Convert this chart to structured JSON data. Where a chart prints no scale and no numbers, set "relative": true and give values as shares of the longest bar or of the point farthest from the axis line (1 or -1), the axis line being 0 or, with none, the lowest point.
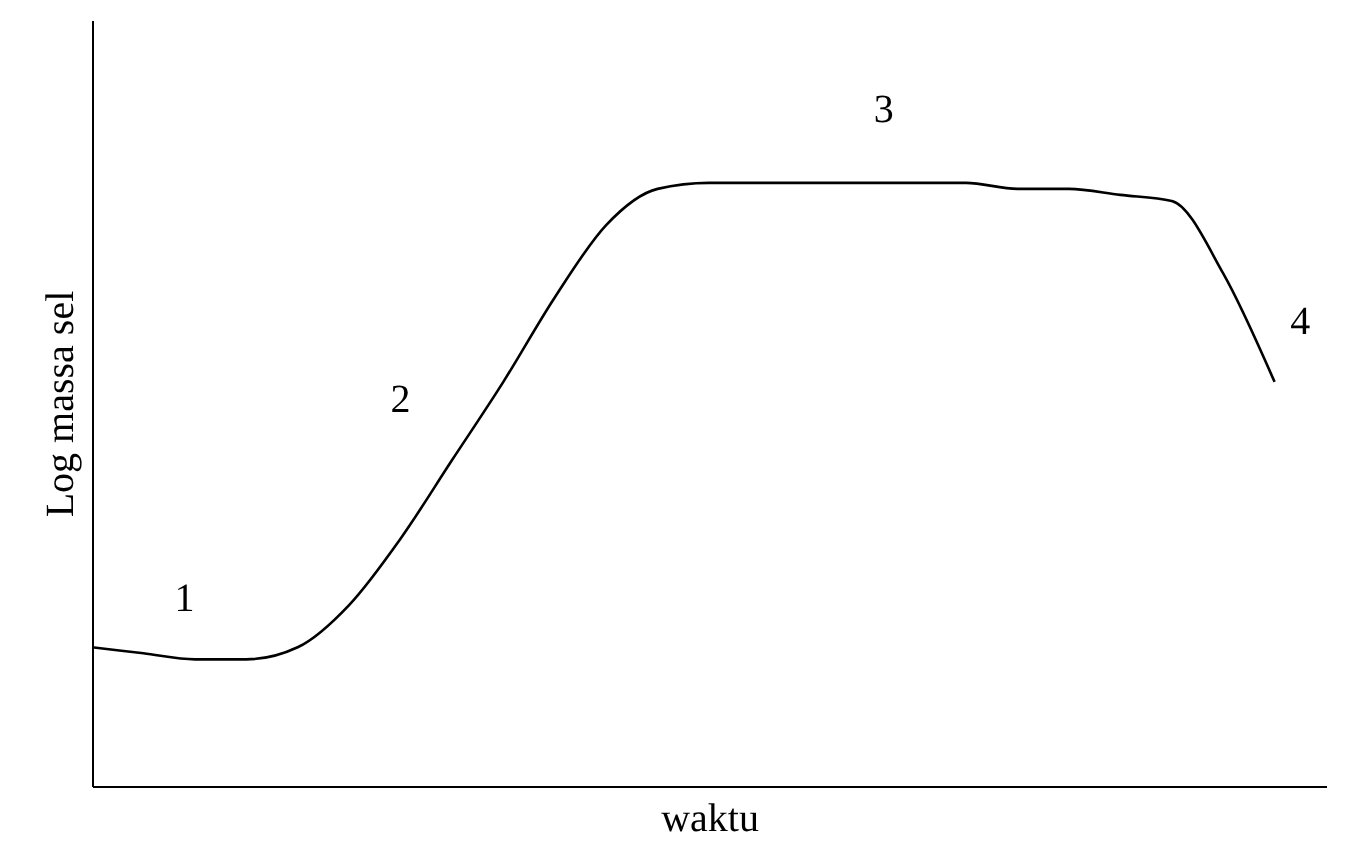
{
  "chart_data": {
    "type": "line",
    "relative": true,
    "xlabel": "waktu",
    "ylabel": "Log massa sel",
    "categories": [
      null,
      null,
      null,
      null,
      null,
      null,
      null,
      null,
      null,
      null,
      null,
      null,
      null,
      null,
      null,
      null,
      null,
      null,
      null,
      null,
      null,
      null,
      null,
      null
    ],
    "series": [
      {
        "color": "#000000",
        "values": [
          0.23,
          0.22,
          0.21,
          0.21,
          0.23,
          0.3,
          0.41,
          0.54,
          0.67,
          0.81,
          0.93,
          0.99,
          1.0,
          1.0,
          1.0,
          1.0,
          1.0,
          1.0,
          0.99,
          0.99,
          0.98,
          0.97,
          0.85,
          0.67
        ]
      }
    ],
    "annotations": [
      "1",
      "2",
      "3",
      "4"
    ],
    "grid": false,
    "marker": "none",
    "line_style": "solid"
  }
}
